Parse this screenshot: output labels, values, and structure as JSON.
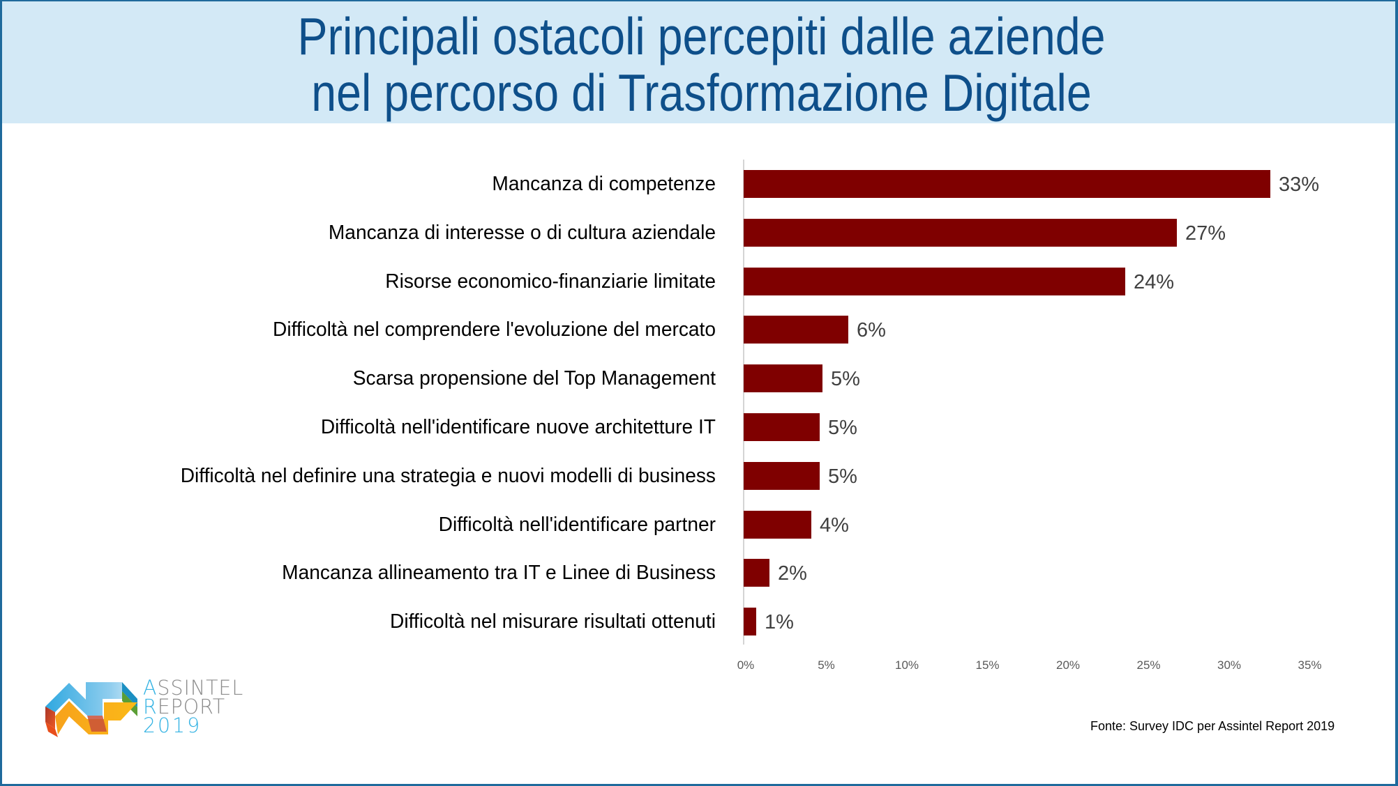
{
  "header": {
    "title_line_1": "Principali ostacoli percepiti dalle aziende",
    "title_line_2": "nel percorso di Trasformazione Digitale"
  },
  "colors": {
    "header_bg": "#d3e9f6",
    "title": "#0e4f8a",
    "border": "#1f6a9c",
    "bar": "#7f0000",
    "value_label": "#404040",
    "tick_label": "#595959",
    "logo_cyan": "#35b3e3",
    "logo_gray": "#8c8c8c"
  },
  "chart_data": {
    "type": "bar",
    "orientation": "horizontal",
    "title": "Principali ostacoli percepiti dalle aziende nel percorso di Trasformazione Digitale",
    "xlabel": "",
    "ylabel": "",
    "xlim": [
      0,
      35
    ],
    "x_ticks": [
      "0%",
      "5%",
      "10%",
      "15%",
      "20%",
      "25%",
      "30%",
      "35%"
    ],
    "grid": false,
    "legend": null,
    "categories": [
      "Mancanza di competenze",
      "Mancanza di interesse o di cultura aziendale",
      "Risorse economico-finanziarie limitate",
      "Difficoltà nel comprendere l'evoluzione del mercato",
      "Scarsa propensione del Top Management",
      "Difficoltà nell'identificare nuove architetture IT",
      "Difficoltà nel definire una strategia e nuovi modelli di business",
      "Difficoltà nell'identificare partner",
      "Mancanza allineamento tra IT e Linee di Business",
      "Difficoltà nel misurare risultati ottenuti"
    ],
    "values": [
      33,
      27,
      24,
      6,
      5,
      5,
      5,
      4,
      2,
      1
    ],
    "bar_lengths_pct": [
      32.7,
      26.9,
      23.7,
      6.5,
      4.9,
      4.7,
      4.7,
      4.2,
      1.6,
      0.8
    ],
    "value_labels": [
      "33%",
      "27%",
      "24%",
      "6%",
      "5%",
      "5%",
      "5%",
      "4%",
      "2%",
      "1%"
    ]
  },
  "logo": {
    "line_1": "ASSINTEL",
    "line_2": "REPORT",
    "line_3": "2019"
  },
  "source": "Fonte: Survey IDC per Assintel Report 2019"
}
